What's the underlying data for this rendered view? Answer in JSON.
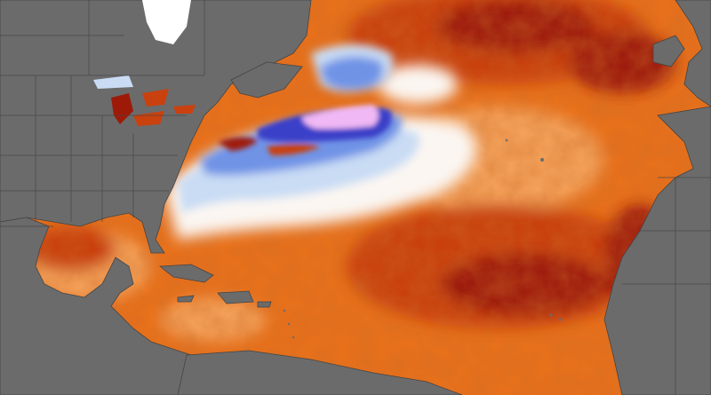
{
  "map": {
    "colors": {
      "land": "#6b6b6b",
      "land_border": "#444444",
      "ocean_warm_light": "#f4a15a",
      "ocean_warm": "#e8701a",
      "ocean_warm_deep": "#c9410f",
      "ocean_hot": "#9e1a08",
      "ocean_neutral": "#fbf6f2",
      "ocean_cool_light": "#c9dcf4",
      "ocean_cool": "#6f93e6",
      "ocean_cold": "#3b40c8",
      "ocean_coldest": "#f0b8f4",
      "ice": "#ffffff"
    }
  }
}
